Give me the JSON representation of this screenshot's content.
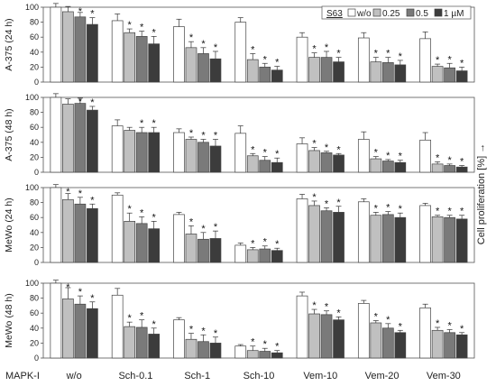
{
  "chart_data": {
    "type": "bar",
    "categories": [
      "w/o",
      "Sch-0.1",
      "Sch-1",
      "Sch-10",
      "Vem-10",
      "Vem-20",
      "Vem-30"
    ],
    "category_axis_label": "MAPK-I",
    "right_label": "Cell proliferation [%] →",
    "legend": {
      "title": "S63",
      "entries": [
        "w/o",
        "0.25",
        "0.5",
        "1 µM"
      ],
      "colors": [
        "#ffffff",
        "#c0c0c0",
        "#7a7a7a",
        "#3c3c3c"
      ],
      "placement": "top-right"
    },
    "ylim": [
      0,
      100
    ],
    "yticks": [
      0,
      20,
      40,
      60,
      80,
      100
    ],
    "significance_marker": "*",
    "panels": [
      {
        "ylabel": "A-375 (24 h)",
        "series": [
          {
            "name": "w/o",
            "values": [
              100,
              82,
              74,
              80,
              60,
              59,
              58
            ],
            "errors": [
              5,
              9,
              10,
              6,
              6,
              7,
              9
            ],
            "stars": [
              false,
              false,
              false,
              false,
              false,
              false,
              false
            ]
          },
          {
            "name": "0.25",
            "values": [
              94,
              66,
              46,
              30,
              33,
              27,
              21
            ],
            "errors": [
              7,
              5,
              8,
              8,
              6,
              6,
              3
            ],
            "stars": [
              false,
              true,
              true,
              true,
              true,
              true,
              true
            ]
          },
          {
            "name": "0.5",
            "values": [
              87,
              61,
              38,
              20,
              33,
              26,
              19
            ],
            "errors": [
              6,
              7,
              8,
              5,
              8,
              7,
              6
            ],
            "stars": [
              true,
              true,
              true,
              true,
              true,
              true,
              true
            ]
          },
          {
            "name": "1 µM",
            "values": [
              77,
              51,
              31,
              16,
              27,
              23,
              15
            ],
            "errors": [
              9,
              10,
              10,
              5,
              6,
              6,
              5
            ],
            "stars": [
              true,
              true,
              true,
              true,
              true,
              true,
              true
            ]
          }
        ]
      },
      {
        "ylabel": "A-375 (48 h)",
        "series": [
          {
            "name": "w/o",
            "values": [
              100,
              62,
              53,
              52,
              38,
              44,
              43
            ],
            "errors": [
              10,
              8,
              5,
              10,
              8,
              10,
              10
            ],
            "stars": [
              false,
              false,
              false,
              false,
              false,
              false,
              false
            ]
          },
          {
            "name": "0.25",
            "values": [
              91,
              56,
              44,
              22,
              29,
              18,
              11
            ],
            "errors": [
              7,
              4,
              3,
              3,
              4,
              3,
              3
            ],
            "stars": [
              false,
              false,
              true,
              true,
              true,
              true,
              true
            ]
          },
          {
            "name": "0.5",
            "values": [
              92,
              53,
              40,
              16,
              26,
              15,
              9
            ],
            "errors": [
              7,
              7,
              4,
              5,
              2,
              2,
              2
            ],
            "stars": [
              true,
              true,
              true,
              true,
              true,
              true,
              true
            ]
          },
          {
            "name": "1 µM",
            "values": [
              83,
              53,
              35,
              13,
              23,
              13,
              7
            ],
            "errors": [
              5,
              7,
              9,
              6,
              2,
              3,
              2
            ],
            "stars": [
              true,
              true,
              true,
              true,
              true,
              true,
              true
            ]
          }
        ]
      },
      {
        "ylabel": "MeWo (24 h)",
        "series": [
          {
            "name": "w/o",
            "values": [
              100,
              90,
              64,
              23,
              85,
              81,
              76
            ],
            "errors": [
              4,
              3,
              3,
              3,
              6,
              4,
              3
            ],
            "stars": [
              false,
              false,
              false,
              false,
              false,
              false,
              false
            ]
          },
          {
            "name": "0.25",
            "values": [
              84,
              55,
              38,
              17,
              76,
              63,
              61
            ],
            "errors": [
              8,
              11,
              11,
              3,
              6,
              4,
              2
            ],
            "stars": [
              true,
              true,
              true,
              true,
              true,
              true,
              true
            ]
          },
          {
            "name": "0.5",
            "values": [
              78,
              52,
              31,
              18,
              69,
              64,
              60
            ],
            "errors": [
              9,
              9,
              9,
              4,
              4,
              4,
              3
            ],
            "stars": [
              true,
              true,
              true,
              true,
              true,
              true,
              true
            ]
          },
          {
            "name": "1 µM",
            "values": [
              72,
              45,
              32,
              16,
              67,
              60,
              58
            ],
            "errors": [
              6,
              10,
              10,
              3,
              8,
              6,
              5
            ],
            "stars": [
              true,
              true,
              true,
              true,
              true,
              true,
              true
            ]
          }
        ]
      },
      {
        "ylabel": "MeWo (48 h)",
        "series": [
          {
            "name": "w/o",
            "values": [
              100,
              84,
              51,
              16,
              83,
              73,
              67
            ],
            "errors": [
              4,
              9,
              3,
              2,
              5,
              4,
              5
            ],
            "stars": [
              false,
              false,
              false,
              false,
              false,
              false,
              false
            ]
          },
          {
            "name": "0.25",
            "values": [
              79,
              42,
              25,
              10,
              59,
              47,
              37
            ],
            "errors": [
              15,
              6,
              8,
              6,
              6,
              3,
              4
            ],
            "stars": [
              true,
              true,
              true,
              true,
              true,
              true,
              true
            ]
          },
          {
            "name": "0.5",
            "values": [
              72,
              41,
              22,
              9,
              58,
              40,
              34
            ],
            "errors": [
              11,
              10,
              9,
              4,
              5,
              6,
              4
            ],
            "stars": [
              true,
              true,
              true,
              true,
              true,
              true,
              true
            ]
          },
          {
            "name": "1 µM",
            "values": [
              66,
              32,
              20,
              7,
              51,
              34,
              31
            ],
            "errors": [
              9,
              8,
              8,
              3,
              4,
              3,
              3
            ],
            "stars": [
              true,
              true,
              true,
              true,
              true,
              true,
              true
            ]
          }
        ]
      }
    ]
  }
}
